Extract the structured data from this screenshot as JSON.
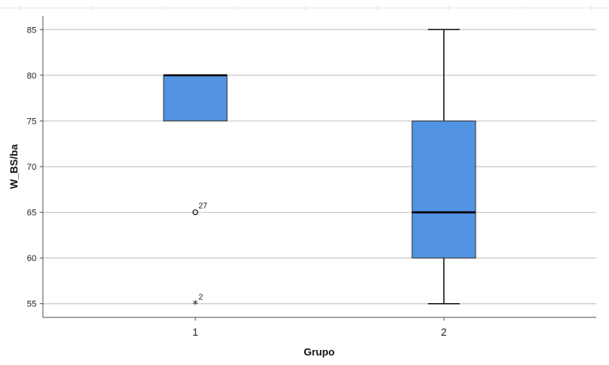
{
  "chart_data": {
    "type": "boxplot",
    "xlabel": "Grupo",
    "ylabel": "W_BS/ba",
    "ylim": [
      53.5,
      86.5
    ],
    "yticks": [
      55,
      60,
      65,
      70,
      75,
      80,
      85
    ],
    "grid": true,
    "box_color": "#5294e2",
    "categories": [
      "1",
      "2"
    ],
    "boxes": [
      {
        "category": "1",
        "whisker_low": 75,
        "q1": 75,
        "median": 80,
        "q3": 80,
        "whisker_high": 80,
        "outliers": [
          {
            "value": 65,
            "label": "27",
            "marker": "circle"
          },
          {
            "value": 55,
            "label": "2",
            "marker": "star"
          }
        ]
      },
      {
        "category": "2",
        "whisker_low": 55,
        "q1": 60,
        "median": 65,
        "q3": 75,
        "whisker_high": 85,
        "outliers": []
      }
    ]
  }
}
